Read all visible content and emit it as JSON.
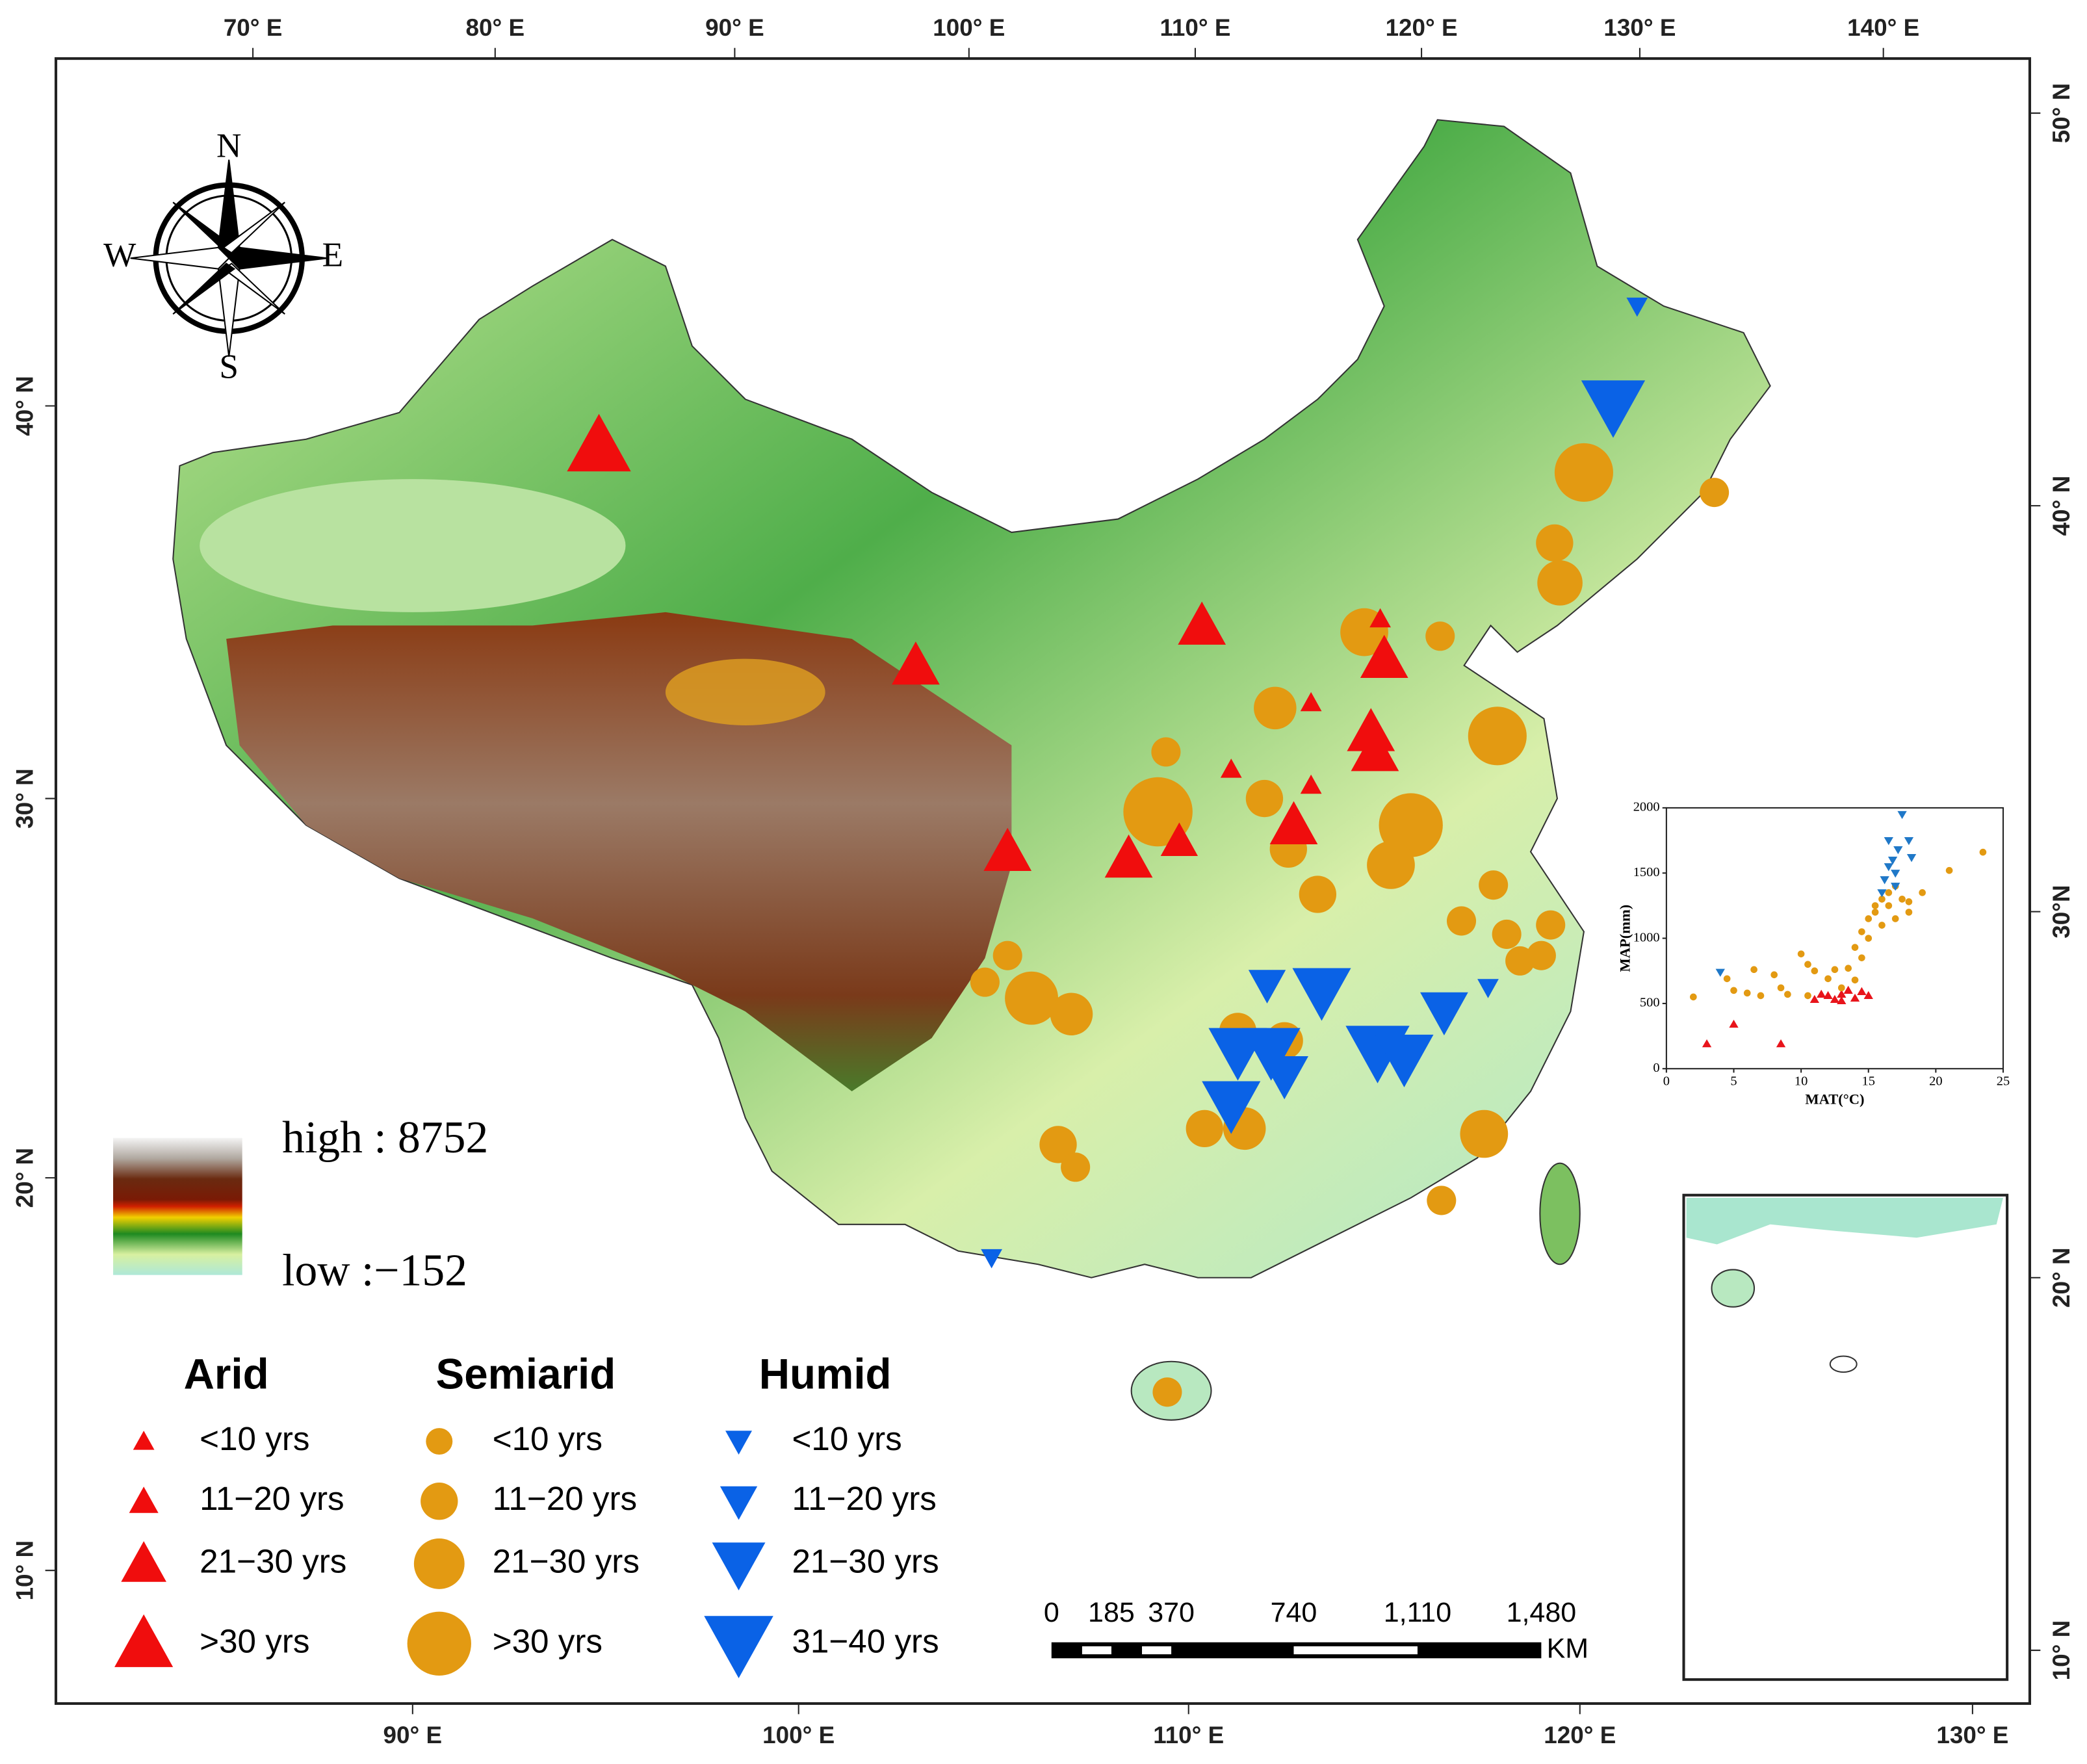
{
  "map": {
    "axes": {
      "top": [
        "70° E",
        "80° E",
        "90° E",
        "100° E",
        "110° E",
        "120° E",
        "130° E",
        "140° E"
      ],
      "bottom": [
        "90° E",
        "100° E",
        "110° E",
        "120° E",
        "130° E"
      ],
      "left": [
        "40° N",
        "30° N",
        "20° N",
        "10° N"
      ],
      "right": [
        "50° N",
        "40° N",
        "30°N",
        "20° N",
        "10° N"
      ]
    },
    "compass": {
      "n": "N",
      "s": "S",
      "w": "W",
      "e": "E"
    },
    "elevation_legend": {
      "high": "high : 8752",
      "low": "low :−152"
    },
    "legend": [
      {
        "title": "Arid",
        "items": [
          "<10 yrs",
          "11−20 yrs",
          "21−30 yrs",
          ">30 yrs"
        ]
      },
      {
        "title": "Semiarid",
        "items": [
          "<10 yrs",
          "11−20 yrs",
          "21−30 yrs",
          ">30 yrs"
        ]
      },
      {
        "title": "Humid",
        "items": [
          "<10 yrs",
          "11−20 yrs",
          "21−30 yrs",
          "31−40 yrs"
        ]
      }
    ],
    "scale_bar": {
      "labels": [
        "0",
        "185",
        "370",
        "740",
        "1,110",
        "1,480"
      ],
      "unit": "KM"
    }
  },
  "inset_chart": {
    "type": "scatter",
    "x_label": "MAT(°C)",
    "y_label": "MAP(mm)",
    "xlim": [
      0,
      25
    ],
    "ylim": [
      0,
      2000
    ],
    "xticks": [
      0,
      5,
      10,
      15,
      20,
      25
    ],
    "yticks": [
      0,
      500,
      1000,
      1500,
      2000
    ],
    "series": [
      {
        "color": "#e8141b",
        "marker": "triangle-up",
        "x": [
          3,
          5,
          8.5,
          11,
          11.5,
          12,
          12.5,
          13,
          13,
          13.5,
          14,
          14.5,
          15
        ],
        "values": [
          190,
          340,
          190,
          530,
          570,
          560,
          530,
          570,
          520,
          600,
          540,
          590,
          560
        ]
      },
      {
        "color": "#e39a12",
        "marker": "circle",
        "x": [
          2,
          4.5,
          5,
          6,
          6.5,
          7,
          8,
          8.5,
          9,
          10,
          10.5,
          10.5,
          11,
          12,
          12.5,
          13,
          13.5,
          14,
          14,
          14.5,
          14.5,
          15,
          15,
          15.5,
          15.5,
          16,
          16,
          16.5,
          16.5,
          17,
          17,
          17.5,
          18,
          18,
          19,
          21,
          23.5
        ],
        "values": [
          550,
          690,
          600,
          580,
          760,
          560,
          720,
          620,
          570,
          880,
          560,
          800,
          750,
          690,
          760,
          620,
          770,
          680,
          930,
          1050,
          850,
          1150,
          1000,
          1200,
          1250,
          1100,
          1300,
          1250,
          1350,
          1150,
          1400,
          1300,
          1200,
          1280,
          1350,
          1520,
          1660
        ]
      },
      {
        "color": "#1f78c8",
        "marker": "triangle-down",
        "x": [
          4,
          16,
          16.2,
          16.5,
          16.5,
          16.8,
          17,
          17,
          17.2,
          17.5,
          18,
          18.2
        ],
        "values": [
          740,
          1350,
          1450,
          1750,
          1550,
          1600,
          1500,
          1400,
          1680,
          1950,
          1750,
          1620
        ]
      }
    ]
  }
}
